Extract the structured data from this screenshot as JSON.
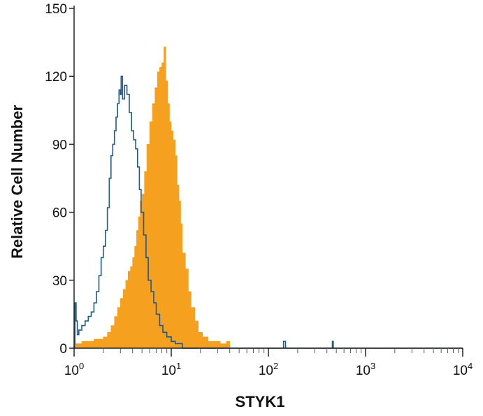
{
  "chart_data": {
    "type": "area",
    "title": "",
    "xlabel": "STYK1",
    "ylabel": "Relative Cell Number",
    "x_scale": "log",
    "xlim": [
      1,
      10000
    ],
    "ylim": [
      0,
      150
    ],
    "grid": false,
    "legend": "none",
    "x_ticks": [
      {
        "value": 1,
        "base": "10",
        "exp": "0"
      },
      {
        "value": 10,
        "base": "10",
        "exp": "1"
      },
      {
        "value": 100,
        "base": "10",
        "exp": "2"
      },
      {
        "value": 1000,
        "base": "10",
        "exp": "3"
      },
      {
        "value": 10000,
        "base": "10",
        "exp": "4"
      }
    ],
    "y_ticks": [
      0,
      30,
      60,
      90,
      120,
      150
    ],
    "series": [
      {
        "style": "filled",
        "color": "#f5a11f",
        "points": [
          [
            1.05,
            2
          ],
          [
            1.2,
            3
          ],
          [
            1.4,
            3
          ],
          [
            1.6,
            4
          ],
          [
            1.8,
            4
          ],
          [
            2.0,
            5
          ],
          [
            2.2,
            7
          ],
          [
            2.4,
            10
          ],
          [
            2.6,
            14
          ],
          [
            2.8,
            18
          ],
          [
            3.0,
            22
          ],
          [
            3.2,
            26
          ],
          [
            3.4,
            30
          ],
          [
            3.6,
            34
          ],
          [
            3.8,
            36
          ],
          [
            4.0,
            40
          ],
          [
            4.2,
            45
          ],
          [
            4.4,
            52
          ],
          [
            4.6,
            58
          ],
          [
            4.8,
            65
          ],
          [
            5.0,
            68
          ],
          [
            5.3,
            78
          ],
          [
            5.6,
            90
          ],
          [
            6.0,
            100
          ],
          [
            6.4,
            108
          ],
          [
            6.8,
            115
          ],
          [
            7.2,
            122
          ],
          [
            7.6,
            124
          ],
          [
            8.0,
            126
          ],
          [
            8.4,
            133
          ],
          [
            8.8,
            118
          ],
          [
            9.2,
            108
          ],
          [
            9.6,
            100
          ],
          [
            10.0,
            96
          ],
          [
            10.5,
            92
          ],
          [
            11.0,
            85
          ],
          [
            11.5,
            72
          ],
          [
            12.0,
            65
          ],
          [
            12.5,
            55
          ],
          [
            13.0,
            42
          ],
          [
            14.0,
            35
          ],
          [
            15.0,
            25
          ],
          [
            16.0,
            18
          ],
          [
            17.5,
            12
          ],
          [
            19.0,
            7
          ],
          [
            21.0,
            5
          ],
          [
            24.0,
            3
          ],
          [
            28.0,
            3
          ],
          [
            32.0,
            2
          ],
          [
            37.0,
            3
          ],
          [
            40.0,
            0
          ]
        ]
      },
      {
        "style": "outline",
        "color": "#1f5a8a",
        "points": [
          [
            1.0,
            0
          ],
          [
            1.02,
            20
          ],
          [
            1.05,
            12
          ],
          [
            1.08,
            6
          ],
          [
            1.12,
            8
          ],
          [
            1.2,
            10
          ],
          [
            1.3,
            12
          ],
          [
            1.4,
            14
          ],
          [
            1.5,
            16
          ],
          [
            1.6,
            20
          ],
          [
            1.7,
            25
          ],
          [
            1.8,
            32
          ],
          [
            1.9,
            40
          ],
          [
            2.0,
            45
          ],
          [
            2.1,
            52
          ],
          [
            2.2,
            62
          ],
          [
            2.3,
            75
          ],
          [
            2.4,
            85
          ],
          [
            2.5,
            90
          ],
          [
            2.6,
            96
          ],
          [
            2.7,
            102
          ],
          [
            2.8,
            108
          ],
          [
            2.9,
            114
          ],
          [
            3.0,
            112
          ],
          [
            3.05,
            120
          ],
          [
            3.15,
            110
          ],
          [
            3.3,
            116
          ],
          [
            3.5,
            112
          ],
          [
            3.7,
            104
          ],
          [
            3.9,
            96
          ],
          [
            4.1,
            92
          ],
          [
            4.3,
            88
          ],
          [
            4.5,
            80
          ],
          [
            4.7,
            70
          ],
          [
            4.9,
            60
          ],
          [
            5.2,
            50
          ],
          [
            5.5,
            40
          ],
          [
            5.8,
            30
          ],
          [
            6.2,
            25
          ],
          [
            6.6,
            20
          ],
          [
            7.0,
            15
          ],
          [
            7.6,
            10
          ],
          [
            8.2,
            7
          ],
          [
            9.0,
            5
          ],
          [
            10.0,
            3
          ],
          [
            11.0,
            2
          ],
          [
            12.0,
            2
          ],
          [
            13.0,
            0
          ],
          [
            140,
            0
          ],
          [
            143,
            3
          ],
          [
            148,
            3
          ],
          [
            150,
            0
          ],
          [
            450,
            0
          ],
          [
            455,
            3
          ],
          [
            462,
            3
          ],
          [
            465,
            0
          ],
          [
            10000,
            0
          ]
        ]
      }
    ]
  }
}
